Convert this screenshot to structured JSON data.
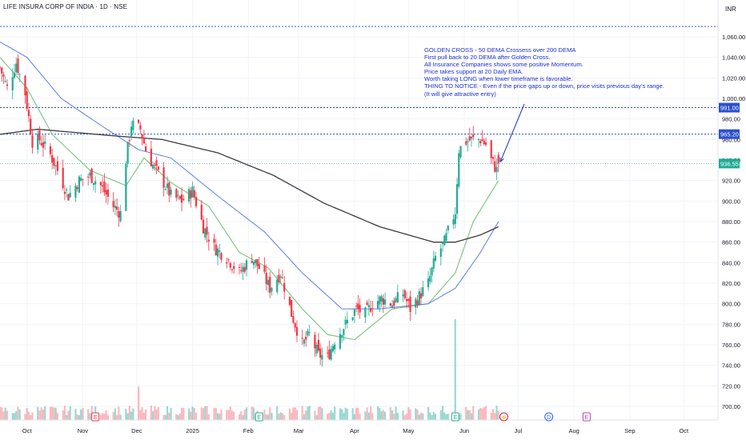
{
  "chart": {
    "title": "LIFE INSURA CORP OF INDIA · 1D · NSE",
    "currency": "INR"
  },
  "annotation": {
    "lines": [
      "GOLDEN CROSS - 50 DEMA Crossess over 200 DEMA",
      "First pull back to 20 DEMA after Golden Cross.",
      "All Insurance Companies shows some positive Momentum.",
      "Price takes support at 20 Daily EMA.",
      "Worth taking LONG when lower timeframe is favorable.",
      "THING TO NOTICE - Even if the price gaps up or down, price visits previous day's range.",
      "(It will give attractive entry)"
    ]
  },
  "price_labels": {
    "top_line": "991.00",
    "mid_line": "965.20",
    "last": "936.55"
  },
  "event_markers": [
    {
      "symbol": "E",
      "date": "2024-11-08"
    },
    {
      "symbol": "E",
      "date": "2025-02-07"
    },
    {
      "symbol": "E",
      "date": "2025-05-27"
    },
    {
      "symbol": "⚡",
      "date": "2025-06-23"
    },
    {
      "symbol": "D",
      "date": "2025-07-18"
    },
    {
      "symbol": "E",
      "date": "2025-08-08"
    }
  ],
  "colors": {
    "up": "#22ab94",
    "down": "#f23645",
    "ema20": "#81c784",
    "ema50": "#5b7fe8",
    "ema200": "#3b3b3b",
    "annotation": "#1e2fd0"
  },
  "chart_data": {
    "type": "candlestick",
    "x_axis": {
      "ticks": [
        "Oct",
        "Nov",
        "Dec",
        "2025",
        "Feb",
        "Mar",
        "Apr",
        "May",
        "Jun",
        "Jul",
        "Aug",
        "Sep",
        "Oct"
      ],
      "range": [
        "2024-09-16",
        "2025-10-20"
      ]
    },
    "y_axis": {
      "ticks": [
        700,
        720,
        740,
        760,
        780,
        800,
        820,
        840,
        860,
        880,
        900,
        920,
        940,
        960,
        980,
        1000,
        1020,
        1040,
        1060
      ],
      "tick_labels": [
        "700.00",
        "720.00",
        "740.00",
        "760.00",
        "780.00",
        "800.00",
        "820.00",
        "840.00",
        "860.00",
        "880.00",
        "900.00",
        "920.00",
        "940.00",
        "960.00",
        "980.00",
        "1,000.00",
        "1,020.00",
        "1,040.00",
        "1,060.00"
      ],
      "range": [
        690,
        1075
      ]
    },
    "horizontal_lines": [
      991.0,
      965.2,
      936.55,
      1070
    ],
    "close_anchors": [
      {
        "date": "2024-09-16",
        "close": 1030
      },
      {
        "date": "2024-09-20",
        "close": 1010
      },
      {
        "date": "2024-09-25",
        "close": 1035
      },
      {
        "date": "2024-09-30",
        "close": 1005
      },
      {
        "date": "2024-10-04",
        "close": 958
      },
      {
        "date": "2024-10-08",
        "close": 960
      },
      {
        "date": "2024-10-14",
        "close": 945
      },
      {
        "date": "2024-10-18",
        "close": 930
      },
      {
        "date": "2024-10-24",
        "close": 905
      },
      {
        "date": "2024-10-30",
        "close": 920
      },
      {
        "date": "2024-11-05",
        "close": 925
      },
      {
        "date": "2024-11-11",
        "close": 915
      },
      {
        "date": "2024-11-18",
        "close": 895
      },
      {
        "date": "2024-11-22",
        "close": 888
      },
      {
        "date": "2024-11-25",
        "close": 940
      },
      {
        "date": "2024-11-28",
        "close": 975
      },
      {
        "date": "2024-12-03",
        "close": 970
      },
      {
        "date": "2024-12-06",
        "close": 950
      },
      {
        "date": "2024-12-10",
        "close": 935
      },
      {
        "date": "2024-12-16",
        "close": 918
      },
      {
        "date": "2024-12-20",
        "close": 905
      },
      {
        "date": "2024-12-26",
        "close": 900
      },
      {
        "date": "2025-01-01",
        "close": 910
      },
      {
        "date": "2025-01-07",
        "close": 875
      },
      {
        "date": "2025-01-13",
        "close": 855
      },
      {
        "date": "2025-01-20",
        "close": 845
      },
      {
        "date": "2025-01-27",
        "close": 830
      },
      {
        "date": "2025-02-03",
        "close": 845
      },
      {
        "date": "2025-02-07",
        "close": 835
      },
      {
        "date": "2025-02-13",
        "close": 815
      },
      {
        "date": "2025-02-19",
        "close": 830
      },
      {
        "date": "2025-02-25",
        "close": 790
      },
      {
        "date": "2025-03-03",
        "close": 760
      },
      {
        "date": "2025-03-07",
        "close": 770
      },
      {
        "date": "2025-03-12",
        "close": 750
      },
      {
        "date": "2025-03-17",
        "close": 748
      },
      {
        "date": "2025-03-21",
        "close": 765
      },
      {
        "date": "2025-03-27",
        "close": 780
      },
      {
        "date": "2025-04-02",
        "close": 795
      },
      {
        "date": "2025-04-07",
        "close": 790
      },
      {
        "date": "2025-04-11",
        "close": 800
      },
      {
        "date": "2025-04-16",
        "close": 805
      },
      {
        "date": "2025-04-22",
        "close": 800
      },
      {
        "date": "2025-04-28",
        "close": 810
      },
      {
        "date": "2025-05-02",
        "close": 795
      },
      {
        "date": "2025-05-06",
        "close": 805
      },
      {
        "date": "2025-05-12",
        "close": 820
      },
      {
        "date": "2025-05-16",
        "close": 845
      },
      {
        "date": "2025-05-21",
        "close": 860
      },
      {
        "date": "2025-05-23",
        "close": 870
      },
      {
        "date": "2025-05-27",
        "close": 890
      },
      {
        "date": "2025-05-29",
        "close": 950
      },
      {
        "date": "2025-06-02",
        "close": 958
      },
      {
        "date": "2025-06-05",
        "close": 960
      },
      {
        "date": "2025-06-10",
        "close": 960
      },
      {
        "date": "2025-06-13",
        "close": 955
      },
      {
        "date": "2025-06-16",
        "close": 940
      },
      {
        "date": "2025-06-19",
        "close": 930
      },
      {
        "date": "2025-06-20",
        "close": 936.55
      }
    ],
    "volume_spikes": [
      {
        "date": "2024-12-02",
        "level": 0.33
      },
      {
        "date": "2025-05-27",
        "level": 1.0
      }
    ],
    "series": [
      {
        "name": "EMA 20",
        "anchors": [
          {
            "date": "2024-09-16",
            "value": 1040
          },
          {
            "date": "2024-10-01",
            "value": 1010
          },
          {
            "date": "2024-10-15",
            "value": 965
          },
          {
            "date": "2024-11-05",
            "value": 930
          },
          {
            "date": "2024-11-25",
            "value": 915
          },
          {
            "date": "2024-12-05",
            "value": 942
          },
          {
            "date": "2024-12-20",
            "value": 918
          },
          {
            "date": "2025-01-10",
            "value": 895
          },
          {
            "date": "2025-01-27",
            "value": 850
          },
          {
            "date": "2025-02-12",
            "value": 835
          },
          {
            "date": "2025-03-03",
            "value": 795
          },
          {
            "date": "2025-03-17",
            "value": 770
          },
          {
            "date": "2025-04-01",
            "value": 765
          },
          {
            "date": "2025-04-22",
            "value": 795
          },
          {
            "date": "2025-05-12",
            "value": 800
          },
          {
            "date": "2025-05-27",
            "value": 830
          },
          {
            "date": "2025-06-06",
            "value": 880
          },
          {
            "date": "2025-06-20",
            "value": 920
          }
        ]
      },
      {
        "name": "EMA 50",
        "anchors": [
          {
            "date": "2024-09-16",
            "value": 1055
          },
          {
            "date": "2024-10-01",
            "value": 1040
          },
          {
            "date": "2024-10-20",
            "value": 1000
          },
          {
            "date": "2024-11-10",
            "value": 975
          },
          {
            "date": "2024-12-02",
            "value": 950
          },
          {
            "date": "2024-12-20",
            "value": 942
          },
          {
            "date": "2025-01-15",
            "value": 905
          },
          {
            "date": "2025-02-10",
            "value": 870
          },
          {
            "date": "2025-03-03",
            "value": 830
          },
          {
            "date": "2025-03-25",
            "value": 795
          },
          {
            "date": "2025-04-15",
            "value": 795
          },
          {
            "date": "2025-05-12",
            "value": 800
          },
          {
            "date": "2025-05-27",
            "value": 815
          },
          {
            "date": "2025-06-10",
            "value": 850
          },
          {
            "date": "2025-06-20",
            "value": 880
          }
        ]
      },
      {
        "name": "EMA 200",
        "anchors": [
          {
            "date": "2024-09-16",
            "value": 965
          },
          {
            "date": "2024-10-07",
            "value": 970
          },
          {
            "date": "2024-11-15",
            "value": 964
          },
          {
            "date": "2024-12-15",
            "value": 960
          },
          {
            "date": "2025-01-15",
            "value": 947
          },
          {
            "date": "2025-02-15",
            "value": 925
          },
          {
            "date": "2025-03-15",
            "value": 898
          },
          {
            "date": "2025-04-15",
            "value": 875
          },
          {
            "date": "2025-05-15",
            "value": 860
          },
          {
            "date": "2025-05-27",
            "value": 860
          },
          {
            "date": "2025-06-10",
            "value": 867
          },
          {
            "date": "2025-06-20",
            "value": 875
          }
        ]
      }
    ]
  }
}
